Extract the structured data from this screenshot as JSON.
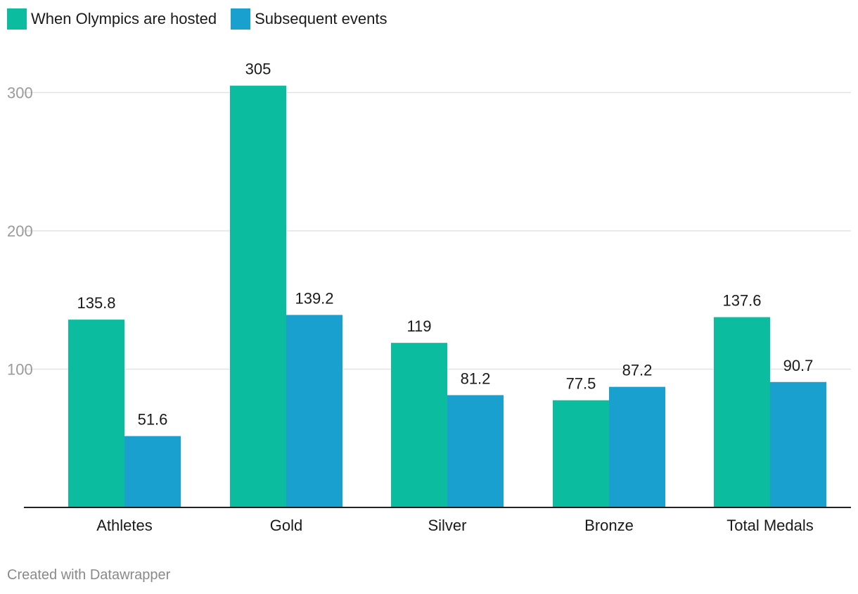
{
  "legend": {
    "items": [
      {
        "label": "When Olympics are hosted",
        "color": "#0bbc9f"
      },
      {
        "label": "Subsequent events",
        "color": "#1aa0cf"
      }
    ]
  },
  "footer": {
    "credit": "Created with Datawrapper"
  },
  "chart_data": {
    "type": "bar",
    "title": "",
    "xlabel": "",
    "ylabel": "",
    "categories": [
      "Athletes",
      "Gold",
      "Silver",
      "Bronze",
      "Total Medals"
    ],
    "series": [
      {
        "name": "When Olympics are hosted",
        "color": "#0bbc9f",
        "values": [
          135.8,
          305,
          119,
          77.5,
          137.6
        ],
        "labels": [
          "135.8",
          "305",
          "119",
          "77.5",
          "137.6"
        ]
      },
      {
        "name": "Subsequent events",
        "color": "#1aa0cf",
        "values": [
          51.6,
          139.2,
          81.2,
          87.2,
          90.7
        ],
        "labels": [
          "51.6",
          "139.2",
          "81.2",
          "87.2",
          "90.7"
        ]
      }
    ],
    "ylim": [
      0,
      300
    ],
    "yticks": [
      100,
      200,
      300
    ],
    "ytick_labels": [
      "100",
      "200",
      "300"
    ],
    "grid": true,
    "legend_position": "top-left"
  }
}
